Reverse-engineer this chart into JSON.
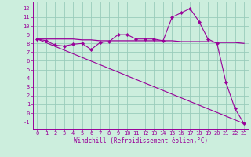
{
  "xlabel": "Windchill (Refroidissement éolien,°C)",
  "bg_color": "#cceedd",
  "grid_color": "#99ccbb",
  "line_color": "#990099",
  "x_ticks": [
    0,
    1,
    2,
    3,
    4,
    5,
    6,
    7,
    8,
    9,
    10,
    11,
    12,
    13,
    14,
    15,
    16,
    17,
    18,
    19,
    20,
    21,
    22,
    23
  ],
  "y_ticks": [
    -1,
    0,
    1,
    2,
    3,
    4,
    5,
    6,
    7,
    8,
    9,
    10,
    11,
    12
  ],
  "ylim": [
    -1.8,
    12.8
  ],
  "xlim": [
    -0.5,
    23.5
  ],
  "series1_x": [
    0,
    1,
    2,
    3,
    4,
    5,
    6,
    7,
    8,
    9,
    10,
    11,
    12,
    13,
    14,
    15,
    16,
    17,
    18,
    19,
    20,
    21,
    22,
    23
  ],
  "series1_y": [
    8.5,
    8.3,
    7.8,
    7.7,
    7.9,
    8.0,
    7.3,
    8.1,
    8.2,
    9.0,
    9.0,
    8.5,
    8.5,
    8.5,
    8.3,
    11.0,
    11.5,
    12.0,
    10.5,
    8.5,
    8.0,
    3.5,
    0.5,
    -1.2
  ],
  "series2_x": [
    0,
    1,
    2,
    3,
    4,
    5,
    6,
    7,
    8,
    9,
    10,
    11,
    12,
    13,
    14,
    15,
    16,
    17,
    18,
    19,
    20,
    21,
    22,
    23
  ],
  "series2_y": [
    8.5,
    8.5,
    8.5,
    8.5,
    8.5,
    8.4,
    8.4,
    8.3,
    8.3,
    8.3,
    8.3,
    8.3,
    8.3,
    8.3,
    8.3,
    8.3,
    8.2,
    8.2,
    8.2,
    8.2,
    8.1,
    8.1,
    8.1,
    8.0
  ],
  "series3_x": [
    0,
    23
  ],
  "series3_y": [
    8.5,
    -1.2
  ],
  "marker": "D",
  "markersize": 2.2,
  "tick_fontsize": 5.0,
  "xlabel_fontsize": 5.5
}
